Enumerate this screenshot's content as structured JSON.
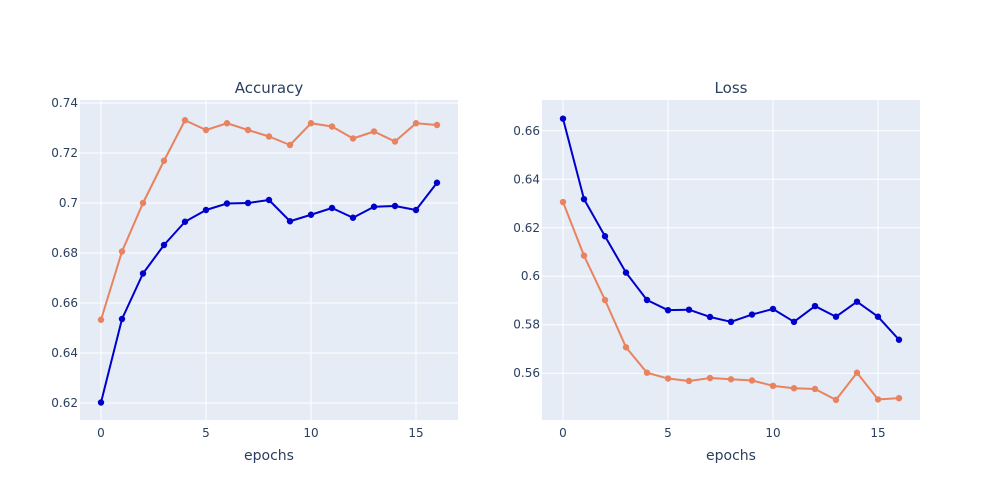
{
  "chart_data": [
    {
      "type": "line",
      "title": "Accuracy",
      "xlabel": "epochs",
      "ylabel": "",
      "x": [
        0,
        1,
        2,
        3,
        4,
        5,
        6,
        7,
        8,
        9,
        10,
        11,
        12,
        13,
        14,
        15,
        16
      ],
      "xlim": [
        -1,
        17
      ],
      "ylim": [
        0.6132,
        0.7412
      ],
      "xticks": [
        0,
        5,
        10,
        15
      ],
      "xtick_labels": [
        "0",
        "5",
        "10",
        "15"
      ],
      "yticks": [
        0.62,
        0.64,
        0.66,
        0.68,
        0.7,
        0.72,
        0.74
      ],
      "ytick_labels": [
        "0.62",
        "0.64",
        "0.66",
        "0.68",
        "0.7",
        "0.72",
        "0.74"
      ],
      "grid": true,
      "series": [
        {
          "color": "#e8825f",
          "values": [
            0.6533,
            0.6806,
            0.7,
            0.7169,
            0.7331,
            0.7292,
            0.7319,
            0.7292,
            0.7266,
            0.7232,
            0.7319,
            0.7306,
            0.7258,
            0.7286,
            0.7246,
            0.7319,
            0.7312
          ]
        },
        {
          "color": "#0000cc",
          "values": [
            0.6202,
            0.6536,
            0.6718,
            0.6832,
            0.6925,
            0.6972,
            0.6998,
            0.7,
            0.7012,
            0.6927,
            0.6953,
            0.698,
            0.6941,
            0.6985,
            0.6988,
            0.6972,
            0.7081
          ]
        }
      ]
    },
    {
      "type": "line",
      "title": "Loss",
      "xlabel": "epochs",
      "ylabel": "",
      "x": [
        0,
        1,
        2,
        3,
        4,
        5,
        6,
        7,
        8,
        9,
        10,
        11,
        12,
        13,
        14,
        15,
        16
      ],
      "xlim": [
        -1,
        17
      ],
      "ylim": [
        0.5407,
        0.6727
      ],
      "xticks": [
        0,
        5,
        10,
        15
      ],
      "xtick_labels": [
        "0",
        "5",
        "10",
        "15"
      ],
      "yticks": [
        0.56,
        0.58,
        0.6,
        0.62,
        0.64,
        0.66
      ],
      "ytick_labels": [
        "0.56",
        "0.58",
        "0.6",
        "0.62",
        "0.64",
        "0.66"
      ],
      "grid": true,
      "series": [
        {
          "color": "#e8825f",
          "values": [
            0.6306,
            0.6085,
            0.5902,
            0.5707,
            0.5602,
            0.5578,
            0.5568,
            0.558,
            0.5575,
            0.557,
            0.5548,
            0.5538,
            0.5535,
            0.549,
            0.5602,
            0.5492,
            0.5497
          ]
        },
        {
          "color": "#0000cc",
          "values": [
            0.665,
            0.6318,
            0.6165,
            0.6015,
            0.5902,
            0.586,
            0.5862,
            0.5832,
            0.5812,
            0.5842,
            0.5865,
            0.5812,
            0.5877,
            0.5833,
            0.5895,
            0.5833,
            0.5738
          ]
        }
      ]
    }
  ],
  "colors": {
    "plot_background": "#e5ecf6",
    "grid": "#ffffff",
    "text": "#2a3f5f"
  }
}
